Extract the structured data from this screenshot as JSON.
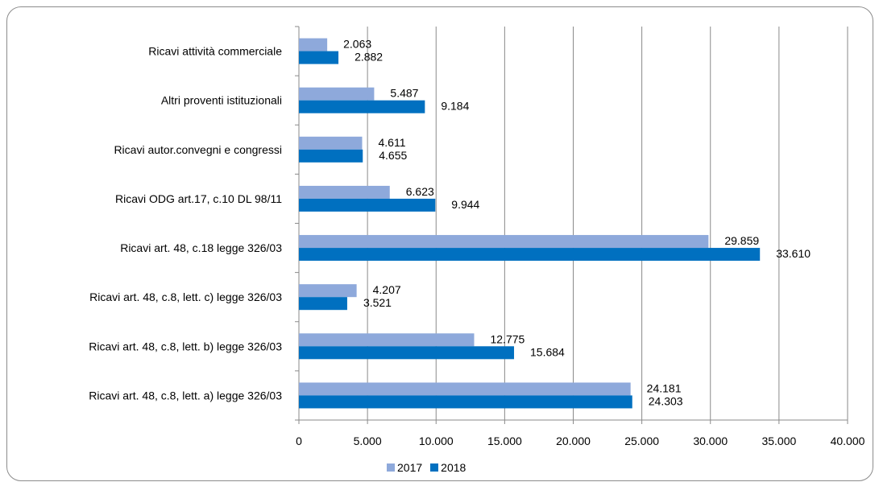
{
  "chart_data": {
    "type": "bar",
    "orientation": "horizontal",
    "categories": [
      "Ricavi attività  commerciale",
      "Altri proventi istituzionali",
      "Ricavi autor.convegni e congressi",
      "Ricavi ODG art.17, c.10 DL 98/11",
      "Ricavi art. 48, c.18 legge 326/03",
      "Ricavi art. 48, c.8, lett. c) legge 326/03",
      "Ricavi art. 48, c.8, lett. b) legge 326/03",
      "Ricavi art. 48, c.8, lett. a) legge 326/03"
    ],
    "series": [
      {
        "name": "2017",
        "color": "#8EA9DB",
        "values": [
          2063,
          5487,
          4611,
          6623,
          29859,
          4207,
          12775,
          24181
        ],
        "labels": [
          "2.063",
          "5.487",
          "4.611",
          "6.623",
          "29.859",
          "4.207",
          "12.775",
          "24.181"
        ]
      },
      {
        "name": "2018",
        "color": "#0070C0",
        "values": [
          2882,
          9184,
          4655,
          9944,
          33610,
          3521,
          15684,
          24303
        ],
        "labels": [
          "2.882",
          "9.184",
          "4.655",
          "9.944",
          "33.610",
          "3.521",
          "15.684",
          "24.303"
        ]
      }
    ],
    "xlim": [
      0,
      40000
    ],
    "xticks": [
      0,
      5000,
      10000,
      15000,
      20000,
      25000,
      30000,
      35000,
      40000
    ],
    "xtick_labels": [
      "0",
      "5.000",
      "10.000",
      "15.000",
      "20.000",
      "25.000",
      "30.000",
      "35.000",
      "40.000"
    ],
    "grid": "vertical",
    "legend": "bottom",
    "title": "",
    "xlabel": "",
    "ylabel": ""
  }
}
